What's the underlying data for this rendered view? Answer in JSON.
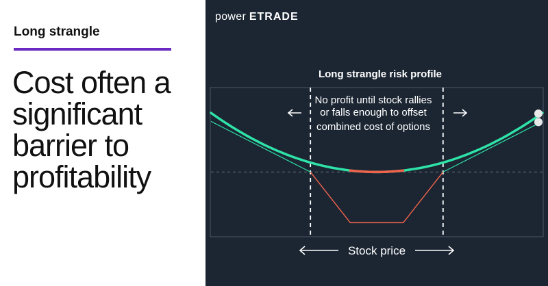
{
  "left": {
    "kicker": "Long strangle",
    "headline": "Cost often a significant barrier to profitability",
    "accent_color": "#6b2bc2"
  },
  "brand": {
    "word": "power",
    "e": "E",
    "rest": "TRADE"
  },
  "colors": {
    "background": "#1c2633",
    "profit_curve": "#2ee3a8",
    "loss_segment": "#f0634a",
    "expiration_line": "#2ee3a8",
    "frame": "#4a5565",
    "text": "#ffffff"
  },
  "chart_data": {
    "type": "line",
    "title": "Long strangle risk profile",
    "xlabel": "Stock price",
    "ylabel": "",
    "annotation": [
      "No profit until stock rallies",
      "or falls enough to offset",
      "combined cost of options"
    ],
    "series": [
      {
        "name": "",
        "style": "curve",
        "x": [
          0,
          3,
          5,
          7,
          10
        ],
        "y": [
          2.1,
          0.45,
          0,
          0.45,
          2.1
        ]
      },
      {
        "name": "",
        "style": "expiration",
        "x": [
          0,
          3,
          4.2,
          5.8,
          7,
          10
        ],
        "y": [
          1.8,
          0,
          -1.8,
          -1.8,
          0,
          1.8
        ]
      }
    ],
    "breakevens": [
      3,
      7
    ],
    "xlim": [
      0,
      10
    ],
    "ylim": [
      -2.3,
      3
    ],
    "zero_line": true,
    "grid": false
  }
}
